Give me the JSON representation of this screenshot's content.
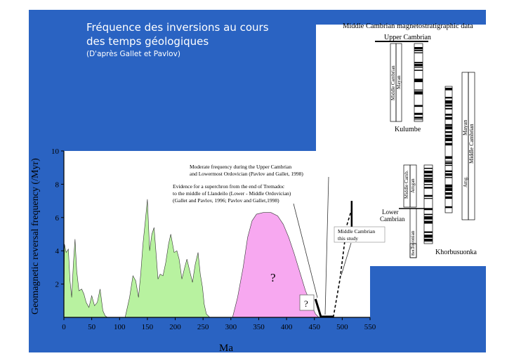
{
  "slide": {
    "title_line1": "Fréquence des inversions au cours",
    "title_line2": "des temps géologiques",
    "title_line3": "(D'après Gallet et Pavlov)"
  },
  "colors": {
    "background": "#2a63c2",
    "green_fill": "#b8f2a0",
    "pink_fill": "#f7a8f0"
  },
  "magneto_panel": {
    "title": "Middle Cambrian magnetostratigraphic data",
    "upper_cambrian": "Upper Cambrian",
    "kulumbe": "Kulumbe",
    "kulumbe_col1": "Middle Cambrian",
    "kulumbe_col2": "Mayan",
    "mayan_right": "Mayan",
    "middle_cambrian_right": "Middle Cambrian",
    "amg": "Amg.",
    "middle_camb": "Middle Camb.",
    "amgan": "Amgan",
    "lower": "Lower",
    "cambrian": "Cambrian",
    "toyonian": "Toyonian",
    "bot": "Bot.",
    "khorbusuonka": "Khorbusuonka"
  },
  "chart_data": {
    "type": "area",
    "xlabel": "Ma",
    "ylabel": "Geomagnetic reversal frequency (/Myr)",
    "xlim": [
      0,
      550
    ],
    "ylim": [
      0,
      10
    ],
    "xticks": [
      0,
      50,
      100,
      150,
      200,
      250,
      300,
      350,
      400,
      450,
      500,
      550
    ],
    "yticks": [
      2,
      4,
      6,
      8,
      10
    ],
    "series": [
      {
        "fill": "#b8f2a0",
        "points": [
          [
            0,
            0
          ],
          [
            1,
            4.4
          ],
          [
            4,
            3.9
          ],
          [
            8,
            4.1
          ],
          [
            11,
            2.2
          ],
          [
            14,
            1.2
          ],
          [
            17,
            3.2
          ],
          [
            20,
            4.7
          ],
          [
            23,
            2.8
          ],
          [
            27,
            1.6
          ],
          [
            32,
            1.7
          ],
          [
            36,
            1.4
          ],
          [
            40,
            0.9
          ],
          [
            45,
            0.6
          ],
          [
            50,
            1.3
          ],
          [
            55,
            0.7
          ],
          [
            60,
            0.9
          ],
          [
            65,
            1.7
          ],
          [
            70,
            0.4
          ],
          [
            74,
            0.1
          ],
          [
            78,
            0
          ]
        ]
      },
      {
        "fill": "#b8f2a0",
        "points": [
          [
            110,
            0
          ],
          [
            118,
            1.2
          ],
          [
            124,
            2.5
          ],
          [
            129,
            2.2
          ],
          [
            134,
            1.2
          ],
          [
            138,
            2.6
          ],
          [
            142,
            4.4
          ],
          [
            146,
            5.7
          ],
          [
            150,
            7.1
          ],
          [
            154,
            4.0
          ],
          [
            158,
            5.0
          ],
          [
            162,
            5.4
          ],
          [
            165,
            4.1
          ],
          [
            169,
            2.3
          ],
          [
            173,
            2.6
          ],
          [
            178,
            2.5
          ],
          [
            183,
            3.3
          ],
          [
            188,
            4.4
          ],
          [
            192,
            5.0
          ],
          [
            198,
            3.9
          ],
          [
            203,
            4.0
          ],
          [
            207,
            3.5
          ],
          [
            212,
            2.3
          ],
          [
            217,
            3.0
          ],
          [
            221,
            3.5
          ],
          [
            226,
            2.8
          ],
          [
            231,
            2.1
          ],
          [
            236,
            3.2
          ],
          [
            241,
            3.9
          ],
          [
            245,
            2.6
          ],
          [
            249,
            1.8
          ],
          [
            252,
            0.8
          ],
          [
            256,
            0.2
          ],
          [
            262,
            0
          ]
        ]
      },
      {
        "fill": "#f7a8f0",
        "points": [
          [
            303,
            0
          ],
          [
            312,
            1.2
          ],
          [
            322,
            3.0
          ],
          [
            330,
            4.8
          ],
          [
            338,
            5.8
          ],
          [
            346,
            6.2
          ],
          [
            358,
            6.3
          ],
          [
            372,
            6.3
          ],
          [
            384,
            6.1
          ],
          [
            394,
            5.6
          ],
          [
            404,
            4.8
          ],
          [
            414,
            3.8
          ],
          [
            424,
            2.7
          ],
          [
            434,
            1.6
          ],
          [
            444,
            0.8
          ],
          [
            452,
            0.2
          ],
          [
            458,
            0
          ]
        ]
      }
    ],
    "upper_cambrian_segment": [
      [
        462,
        0
      ],
      [
        484,
        0
      ]
    ],
    "middle_cambrian_dashed": [
      [
        484,
        0
      ],
      [
        496,
        2.3
      ],
      [
        508,
        5.5
      ],
      [
        517,
        6.5
      ]
    ],
    "study_bar": [
      [
        517,
        5.2
      ],
      [
        517,
        7.0
      ]
    ],
    "annotations": [
      {
        "text": "?",
        "x": 385,
        "y": 2.5
      },
      {
        "text": "?",
        "x": 438,
        "y": 0.8
      },
      {
        "text": "Moderate frequency during the Upper Cambrian"
      },
      {
        "text": "and Lowermost Ordovician (Pavlov and Gallet, 1998)"
      },
      {
        "text": "Evidence for a superchron from  the end of Tremadoc"
      },
      {
        "text": "to the middle of Llandeilo (Lower - Middle Ordovician)"
      },
      {
        "text": "(Gallet and Pavlov, 1996; Pavlov and Gallet,1998)"
      },
      {
        "text": "Middle Cambrian"
      },
      {
        "text": "this study"
      }
    ]
  }
}
